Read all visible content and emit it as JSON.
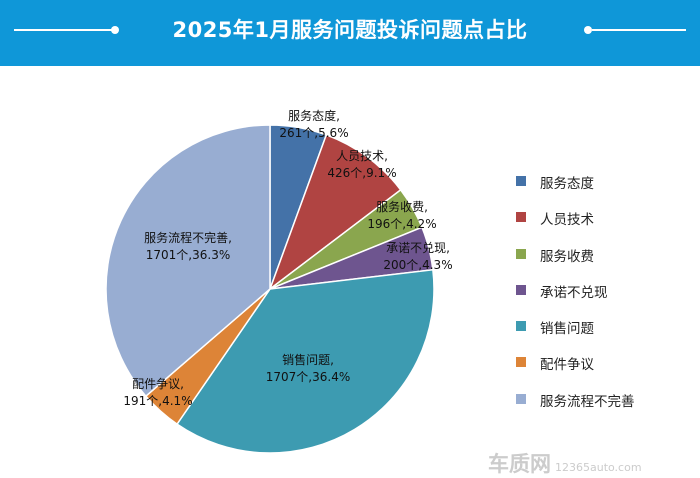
{
  "chart_data": {
    "type": "pie",
    "title": "2025年1月服务问题投诉问题点占比",
    "legend_position": "right",
    "slices": [
      {
        "name": "服务态度",
        "label_line1": "服务态度,",
        "label_line2": "261个,5.6%",
        "value": 261,
        "percent": 5.6,
        "color": "#4472a8"
      },
      {
        "name": "人员技术",
        "label_line1": "人员技术,",
        "label_line2": "426个,9.1%",
        "value": 426,
        "percent": 9.1,
        "color": "#b04442"
      },
      {
        "name": "服务收费",
        "label_line1": "服务收费,",
        "label_line2": "196个,4.2%",
        "value": 196,
        "percent": 4.2,
        "color": "#8aa64e"
      },
      {
        "name": "承诺不兑现",
        "label_line1": "承诺不兑现,",
        "label_line2": "200个,4.3%",
        "value": 200,
        "percent": 4.3,
        "color": "#6e558f"
      },
      {
        "name": "销售问题",
        "label_line1": "销售问题,",
        "label_line2": "1707个,36.4%",
        "value": 1707,
        "percent": 36.4,
        "color": "#3d9bb1"
      },
      {
        "name": "配件争议",
        "label_line1": "配件争议,",
        "label_line2": "191个,4.1%",
        "value": 191,
        "percent": 4.1,
        "color": "#dd8437"
      },
      {
        "name": "服务流程不完善",
        "label_line1": "服务流程不完善,",
        "label_line2": "1701个,36.3%",
        "value": 1701,
        "percent": 36.3,
        "color": "#98add2"
      }
    ]
  },
  "watermark": {
    "logo_text": "车质网",
    "site_text": "12365auto.com"
  }
}
